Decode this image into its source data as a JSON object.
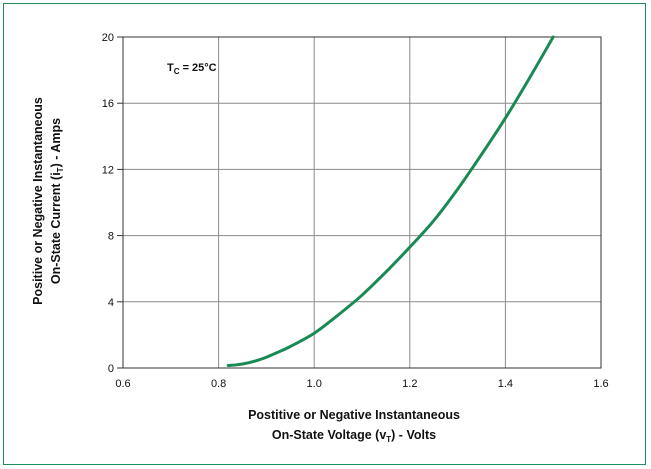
{
  "chart_data": {
    "type": "line",
    "x_ticks": [
      "0.6",
      "0.8",
      "1.0",
      "1.2",
      "1.4",
      "1.6"
    ],
    "y_ticks": [
      "0",
      "4",
      "8",
      "12",
      "16",
      "20"
    ],
    "xlim": [
      0.6,
      1.6
    ],
    "ylim": [
      0,
      20
    ],
    "grid": true,
    "annotation": {
      "main": "T",
      "sub": "C",
      "rest": " = 25°C"
    },
    "xlabel": {
      "line1": "Postitive or Negative Instantaneous",
      "line2_pre": "On-State Voltage (v",
      "line2_sub": "T",
      "line2_post": ") - Volts"
    },
    "ylabel": {
      "line1": "Positive or Negative Instantaneous",
      "line2_pre": "On-State Current (i",
      "line2_sub": "T",
      "line2_post": ") - Amps"
    },
    "series": [
      {
        "color": "#1a8a55",
        "x": [
          0.82,
          0.84,
          0.86,
          0.88,
          0.9,
          0.92,
          0.95,
          1.0,
          1.05,
          1.1,
          1.15,
          1.2,
          1.25,
          1.3,
          1.35,
          1.4,
          1.45,
          1.5
        ],
        "y": [
          0.15,
          0.2,
          0.3,
          0.45,
          0.65,
          0.9,
          1.3,
          2.1,
          3.2,
          4.4,
          5.8,
          7.3,
          8.9,
          10.8,
          12.9,
          15.1,
          17.5,
          20.0
        ]
      }
    ]
  }
}
